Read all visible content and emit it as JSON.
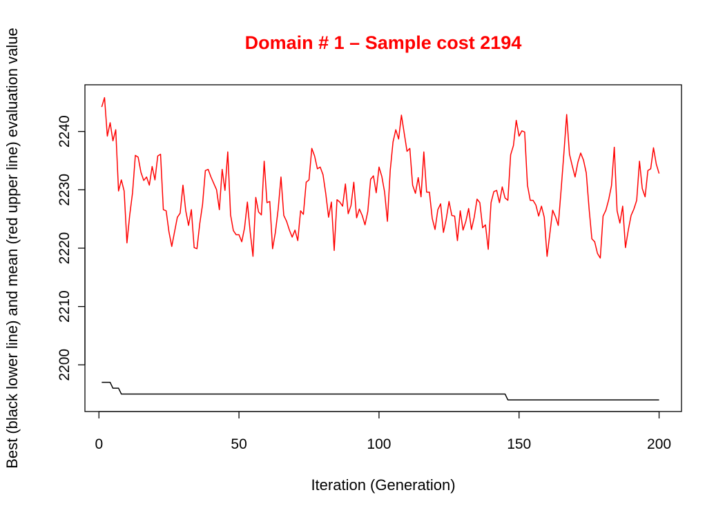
{
  "colors": {
    "mean_line": "#ff0000",
    "best_line": "#000000",
    "title": "#ff0000",
    "background": "#ffffff"
  },
  "chart_data": {
    "type": "line",
    "title": "Domain # 1  – Sample cost 2194",
    "xlabel": "Iteration (Generation)",
    "ylabel": "Best (black lower line) and mean (red upper line) evaluation value",
    "xlim": [
      -5,
      208
    ],
    "ylim": [
      2192,
      2248
    ],
    "xticks": [
      0,
      50,
      100,
      150,
      200
    ],
    "yticks": [
      2200,
      2210,
      2220,
      2230,
      2240
    ],
    "grid": false,
    "legend": "none",
    "series": [
      {
        "color": "#ff0000",
        "x_start": 1,
        "values": [
          2244.2,
          2245.8,
          2239.2,
          2241.5,
          2238.4,
          2240.3,
          2229.8,
          2231.7,
          2229.8,
          2220.9,
          2225.7,
          2229.5,
          2235.9,
          2235.6,
          2233.0,
          2231.6,
          2232.2,
          2230.8,
          2234.0,
          2231.7,
          2235.8,
          2236.1,
          2226.6,
          2226.4,
          2222.8,
          2220.3,
          2222.8,
          2225.3,
          2226.0,
          2230.8,
          2226.4,
          2223.9,
          2226.6,
          2220.1,
          2219.9,
          2224.2,
          2227.5,
          2233.3,
          2233.5,
          2232.2,
          2231.1,
          2230.0,
          2226.6,
          2233.5,
          2229.9,
          2236.5,
          2225.7,
          2223.0,
          2222.3,
          2222.3,
          2221.1,
          2223.5,
          2227.9,
          2222.8,
          2218.6,
          2228.7,
          2226.2,
          2225.7,
          2234.9,
          2227.8,
          2228.0,
          2219.9,
          2222.7,
          2226.7,
          2232.2,
          2225.6,
          2224.6,
          2223.1,
          2221.9,
          2223.1,
          2221.3,
          2226.4,
          2225.8,
          2231.3,
          2231.7,
          2237.1,
          2235.8,
          2233.6,
          2233.9,
          2232.6,
          2229.3,
          2225.3,
          2227.9,
          2219.6,
          2228.3,
          2227.9,
          2227.2,
          2231.0,
          2225.9,
          2227.3,
          2231.3,
          2225.2,
          2226.7,
          2225.6,
          2224.0,
          2226.3,
          2231.8,
          2232.4,
          2229.5,
          2233.9,
          2232.3,
          2229.6,
          2224.6,
          2233.3,
          2238.2,
          2240.3,
          2238.7,
          2242.8,
          2239.7,
          2236.6,
          2237.1,
          2230.8,
          2229.4,
          2232.1,
          2228.8,
          2236.5,
          2229.6,
          2229.6,
          2225.1,
          2223.2,
          2226.6,
          2227.6,
          2222.7,
          2225.0,
          2228.0,
          2225.6,
          2225.5,
          2221.3,
          2226.4,
          2223.1,
          2224.6,
          2226.8,
          2223.2,
          2225.3,
          2228.4,
          2227.8,
          2223.5,
          2224.0,
          2219.8,
          2227.8,
          2229.7,
          2229.9,
          2227.8,
          2230.5,
          2228.6,
          2228.2,
          2236.0,
          2237.6,
          2241.9,
          2239.2,
          2240.1,
          2239.9,
          2230.8,
          2228.2,
          2228.2,
          2227.4,
          2225.5,
          2227.2,
          2225.3,
          2218.6,
          2222.5,
          2226.5,
          2225.4,
          2223.9,
          2229.9,
          2236.2,
          2242.9,
          2236.1,
          2234.1,
          2232.2,
          2234.7,
          2236.3,
          2235.1,
          2232.9,
          2226.8,
          2221.6,
          2221.1,
          2219.1,
          2218.3,
          2225.5,
          2226.5,
          2228.3,
          2230.7,
          2237.3,
          2226.4,
          2224.3,
          2227.2,
          2220.1,
          2223.1,
          2225.6,
          2226.7,
          2228.2,
          2234.9,
          2230.2,
          2228.8,
          2233.3,
          2233.6,
          2237.2,
          2234.4,
          2232.8
        ]
      },
      {
        "color": "#000000",
        "x": [
          1,
          4,
          5,
          7,
          8,
          145,
          146,
          200
        ],
        "values": [
          2197,
          2197,
          2196,
          2196,
          2195,
          2195,
          2194,
          2194
        ]
      }
    ]
  }
}
